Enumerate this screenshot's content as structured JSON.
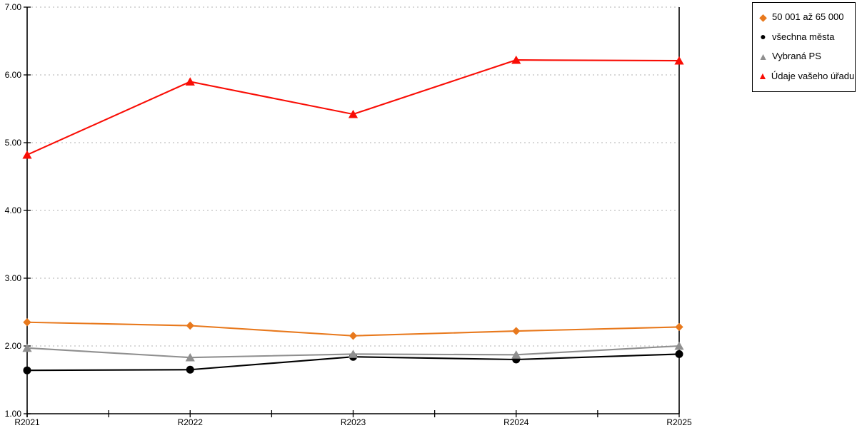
{
  "chart_data": {
    "type": "line",
    "title": "",
    "xlabel": "",
    "ylabel": "",
    "categories": [
      "R2021",
      "R2022",
      "R2023",
      "R2024",
      "R2025"
    ],
    "series": [
      {
        "name": "50 001 až 65 000",
        "marker": "diamond",
        "color": "#E8791D",
        "values": [
          2.35,
          2.3,
          2.15,
          2.22,
          2.28
        ]
      },
      {
        "name": "všechna města",
        "marker": "circle",
        "color": "#000000",
        "values": [
          1.64,
          1.65,
          1.84,
          1.8,
          1.88
        ]
      },
      {
        "name": "Vybraná PS",
        "marker": "triangle",
        "color": "#8F8F8F",
        "values": [
          1.97,
          1.83,
          1.88,
          1.87,
          2.0
        ]
      },
      {
        "name": "Údaje vašeho úřadu",
        "marker": "triangle",
        "color": "#F90D05",
        "values": [
          4.82,
          5.9,
          5.42,
          6.22,
          6.21
        ]
      }
    ],
    "ylim": [
      1.0,
      7.0
    ],
    "ytick_step": 1.0,
    "grid": "horizontal-dotted",
    "legend_position": "top-right"
  },
  "axes": {
    "y_ticks": [
      "7.00",
      "6.00",
      "5.00",
      "4.00",
      "3.00",
      "2.00",
      "1.00"
    ],
    "x_ticks": [
      "R2021",
      "R2022",
      "R2023",
      "R2024",
      "R2025"
    ]
  },
  "legend": {
    "items": [
      {
        "label": "50 001 až 65 000",
        "marker": "diamond-icon",
        "color": "#E8791D"
      },
      {
        "label": "všechna města",
        "marker": "circle-icon",
        "color": "#000000"
      },
      {
        "label": "Vybraná PS",
        "marker": "triangle-icon",
        "color": "#8F8F8F"
      },
      {
        "label": "Údaje vašeho úřadu",
        "marker": "triangle-icon",
        "color": "#F90D05"
      }
    ]
  },
  "colors": {
    "background": "#FFFFFF",
    "grid": "#B0B0B0",
    "axis": "#000000"
  }
}
